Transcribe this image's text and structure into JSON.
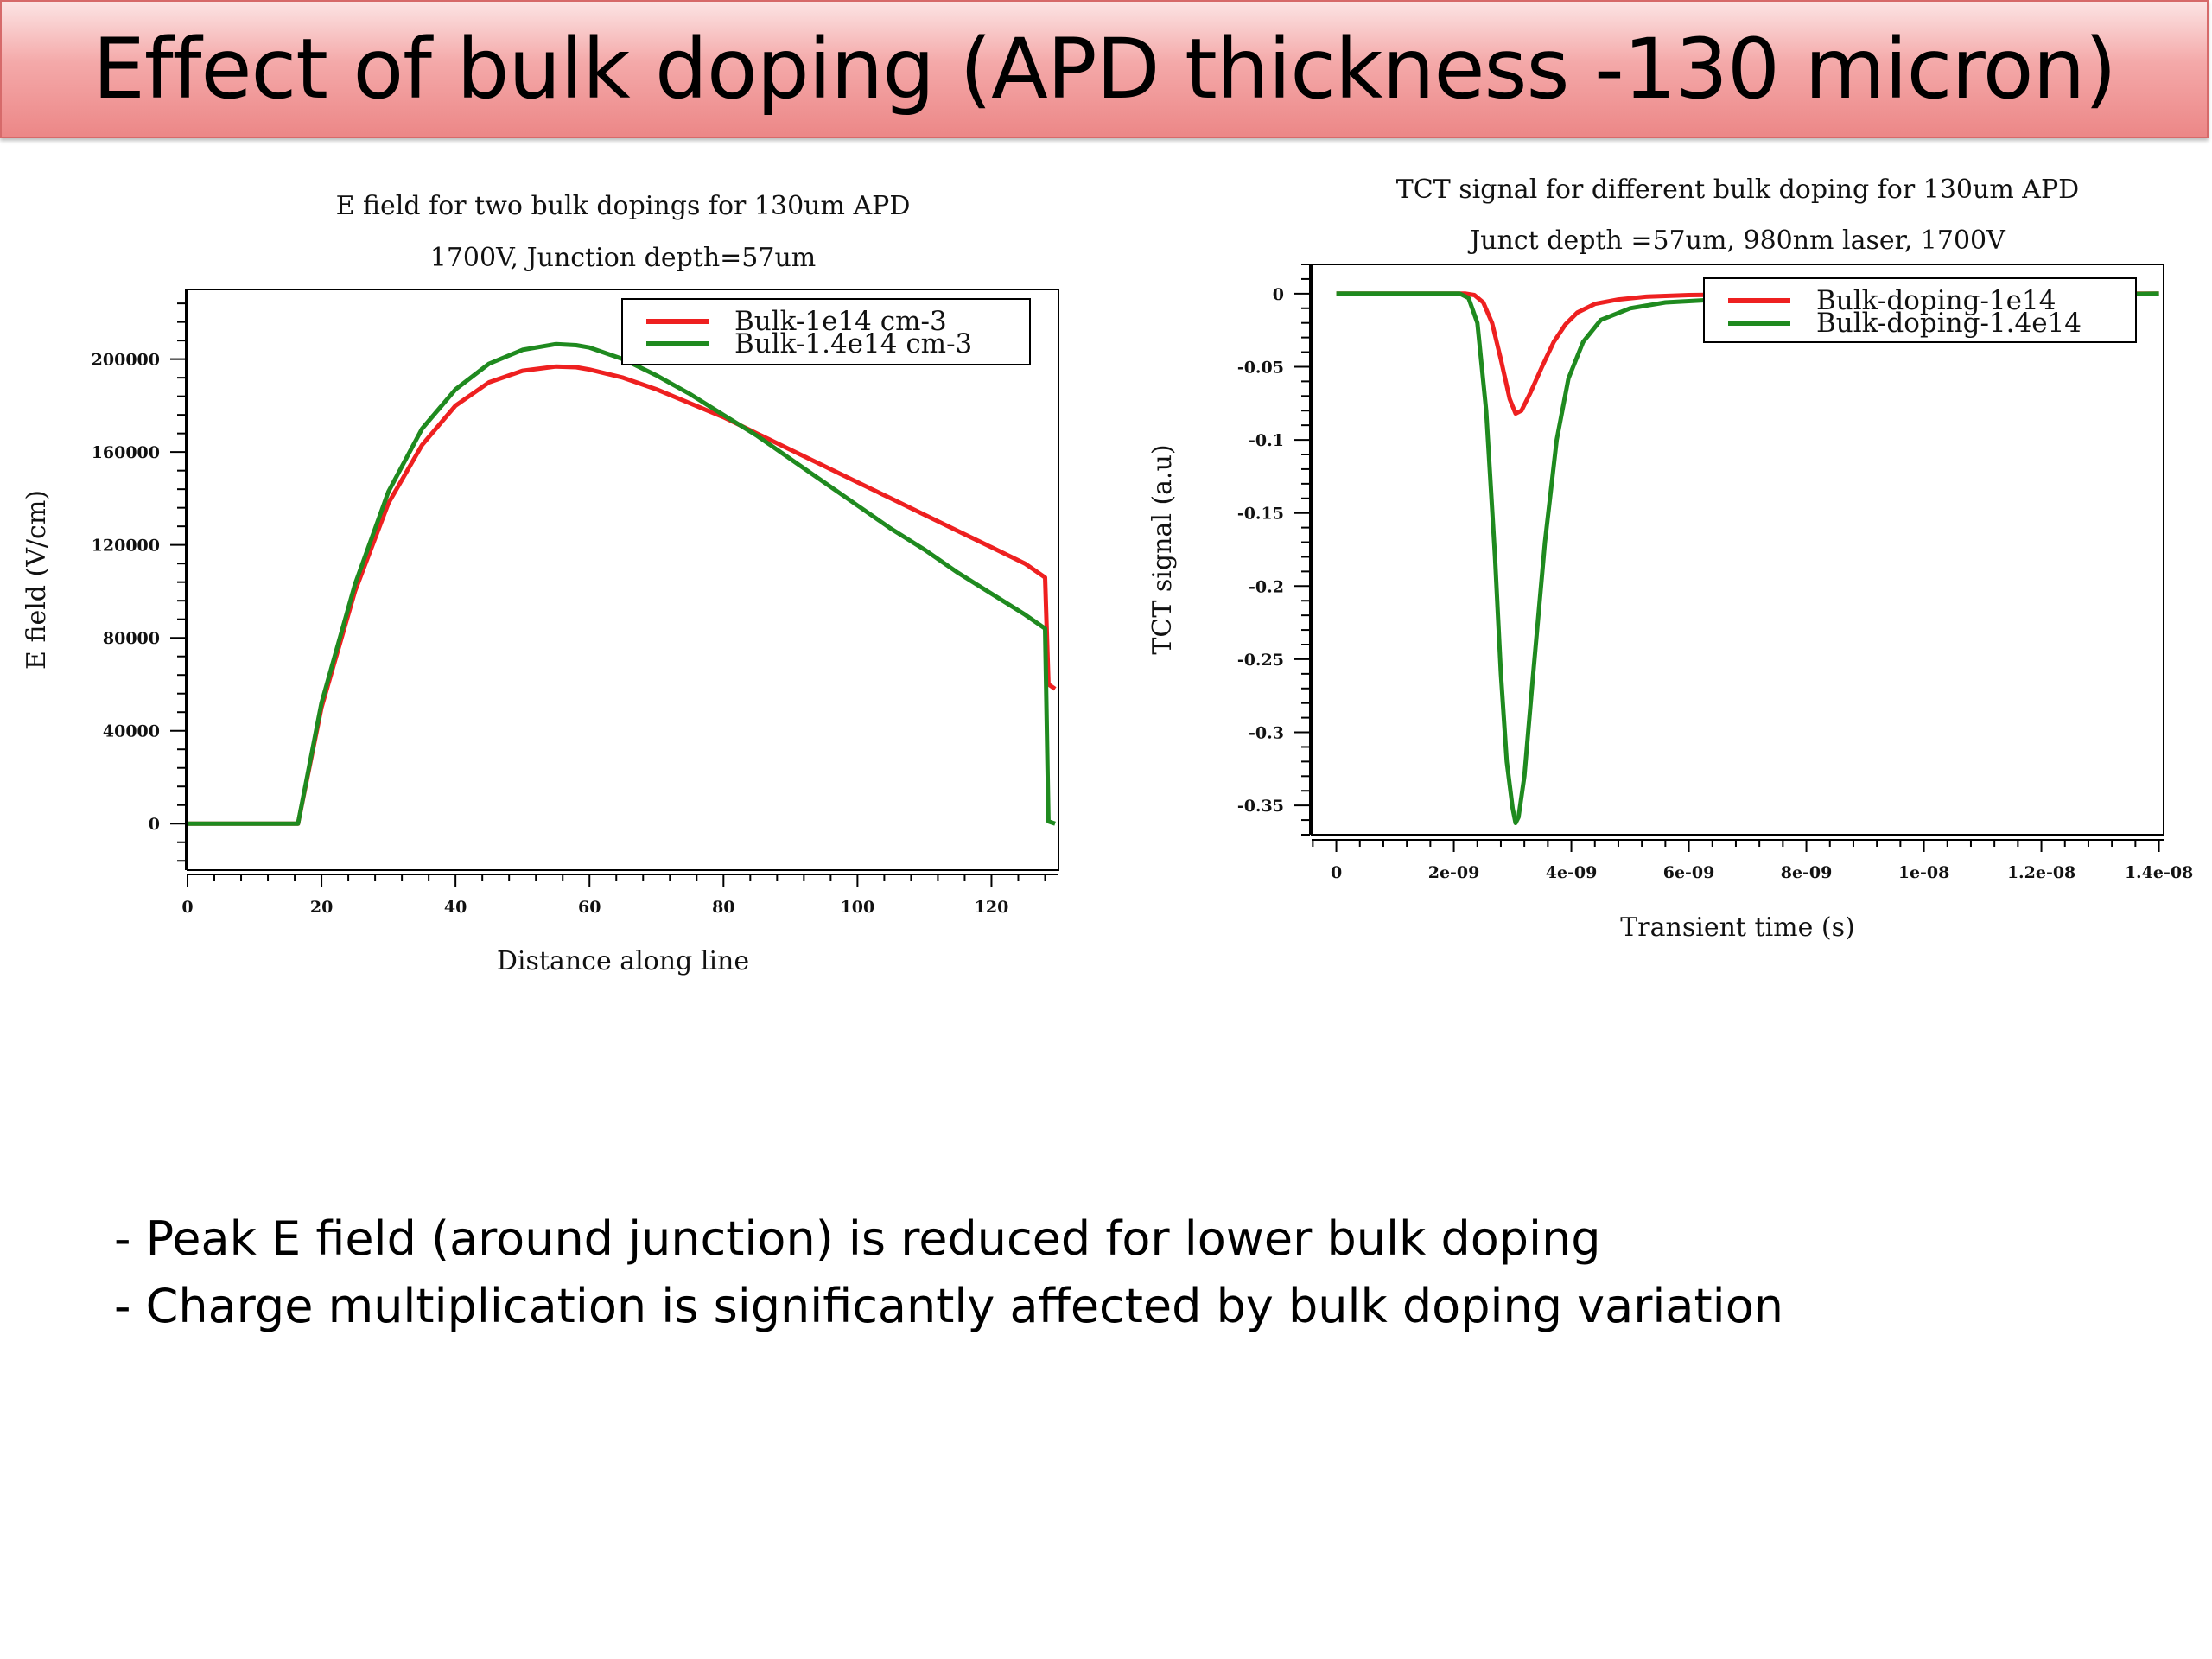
{
  "slide": {
    "title": "Effect of bulk doping (APD thickness -130 micron)",
    "bullets": [
      "- Peak E field (around junction) is reduced for lower bulk doping",
      "- Charge multiplication is significantly affected by bulk doping variation"
    ]
  },
  "colors": {
    "red": "#ee2020",
    "green": "#1f8a1f"
  },
  "chart_data": [
    {
      "type": "line",
      "title": "E field for two bulk dopings for 130um APD",
      "subtitle": "1700V, Junction depth=57um",
      "xlabel": "Distance along line",
      "ylabel": "E field (V/cm)",
      "xlim": [
        0,
        130
      ],
      "ylim": [
        -20000,
        230000
      ],
      "xticks": [
        0,
        20,
        40,
        60,
        80,
        100,
        120
      ],
      "xtick_labels": [
        "0",
        "20",
        "40",
        "60",
        "80",
        "100",
        "120"
      ],
      "yticks": [
        0,
        40000,
        80000,
        120000,
        160000,
        200000
      ],
      "ytick_labels": [
        "0",
        "40000",
        "80000",
        "120000",
        "160000",
        "200000"
      ],
      "legend_position": "top-center",
      "series": [
        {
          "name": "Bulk-1e14 cm-3",
          "color": "#ee2020",
          "x": [
            0,
            16.5,
            20,
            25,
            30,
            35,
            40,
            45,
            50,
            55,
            58,
            60,
            65,
            70,
            75,
            80,
            85,
            90,
            95,
            100,
            105,
            110,
            115,
            120,
            125,
            128,
            128.5,
            129.5
          ],
          "y": [
            0,
            0,
            50000,
            100000,
            138000,
            163000,
            180000,
            190000,
            195000,
            196800,
            196500,
            195500,
            192000,
            187000,
            181000,
            175000,
            168000,
            161000,
            154000,
            147000,
            140000,
            133000,
            126000,
            119000,
            112000,
            106000,
            60000,
            58000
          ]
        },
        {
          "name": "Bulk-1.4e14 cm-3",
          "color": "#1f8a1f",
          "x": [
            0,
            16.5,
            20,
            25,
            30,
            35,
            40,
            45,
            50,
            55,
            58,
            60,
            65,
            70,
            75,
            80,
            85,
            90,
            95,
            100,
            105,
            110,
            115,
            120,
            125,
            128,
            128.5,
            129.5
          ],
          "y": [
            0,
            0,
            52000,
            103000,
            143000,
            170000,
            187000,
            198000,
            204000,
            206500,
            206000,
            205000,
            200000,
            193000,
            185000,
            176000,
            167000,
            157000,
            147000,
            137000,
            127000,
            118000,
            108000,
            99000,
            90000,
            84000,
            1000,
            0
          ]
        }
      ]
    },
    {
      "type": "line",
      "title": "TCT signal for different bulk doping for 130um APD",
      "subtitle": "Junct depth =57um, 980nm laser, 1700V",
      "xlabel": "Transient time (s)",
      "ylabel": "TCT signal (a.u)",
      "xlim": [
        -4.2e-10,
        1.408e-08
      ],
      "ylim": [
        -0.37,
        0.02
      ],
      "xticks": [
        0,
        2e-09,
        4e-09,
        6e-09,
        8e-09,
        1e-08,
        1.2e-08,
        1.4e-08
      ],
      "xtick_labels": [
        "0",
        "2e-09",
        "4e-09",
        "6e-09",
        "8e-09",
        "1e-08",
        "1.2e-08",
        "1.4e-08"
      ],
      "yticks": [
        0,
        -0.05,
        -0.1,
        -0.15,
        -0.2,
        -0.25,
        -0.3,
        -0.35
      ],
      "ytick_labels": [
        "0",
        "-0.05",
        "-0.1",
        "-0.15",
        "-0.2",
        "-0.25",
        "-0.3",
        "-0.35"
      ],
      "legend_position": "top-right",
      "series": [
        {
          "name": "Bulk-doping-1e14",
          "color": "#ee2020",
          "x": [
            0,
            2.2e-09,
            2.35e-09,
            2.5e-09,
            2.65e-09,
            2.8e-09,
            2.95e-09,
            3.05e-09,
            3.15e-09,
            3.3e-09,
            3.5e-09,
            3.7e-09,
            3.9e-09,
            4.1e-09,
            4.4e-09,
            4.8e-09,
            5.3e-09,
            6e-09,
            8e-09,
            1e-08,
            1.2e-08,
            1.4e-08
          ],
          "y": [
            0,
            0,
            -0.001,
            -0.006,
            -0.02,
            -0.045,
            -0.072,
            -0.082,
            -0.08,
            -0.068,
            -0.05,
            -0.033,
            -0.021,
            -0.013,
            -0.007,
            -0.004,
            -0.002,
            -0.001,
            0,
            0,
            0,
            0
          ]
        },
        {
          "name": "Bulk-doping-1.4e14",
          "color": "#1f8a1f",
          "x": [
            0,
            2.1e-09,
            2.25e-09,
            2.4e-09,
            2.55e-09,
            2.7e-09,
            2.8e-09,
            2.9e-09,
            3e-09,
            3.05e-09,
            3.1e-09,
            3.2e-09,
            3.35e-09,
            3.55e-09,
            3.75e-09,
            3.95e-09,
            4.2e-09,
            4.5e-09,
            5e-09,
            5.6e-09,
            6.5e-09,
            8e-09,
            1e-08,
            1.2e-08,
            1.4e-08
          ],
          "y": [
            0,
            0,
            -0.003,
            -0.02,
            -0.08,
            -0.18,
            -0.26,
            -0.32,
            -0.352,
            -0.362,
            -0.358,
            -0.33,
            -0.26,
            -0.17,
            -0.1,
            -0.058,
            -0.033,
            -0.018,
            -0.01,
            -0.006,
            -0.004,
            -0.003,
            -0.002,
            -0.001,
            0
          ]
        }
      ]
    }
  ]
}
